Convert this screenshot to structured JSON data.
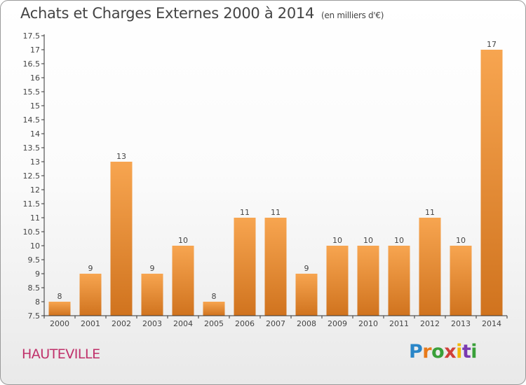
{
  "header": {
    "title": "Achats et Charges Externes 2000 à 2014",
    "unit": "(en milliers d'€)"
  },
  "location": "HAUTEVILLE",
  "logo": {
    "text": "Proxiti"
  },
  "colors": {
    "bar_top": "#f7a550",
    "bar_bottom": "#d0731e",
    "location": "#c0306a"
  },
  "chart_data": {
    "type": "bar",
    "title": "Achats et Charges Externes 2000 à 2014",
    "subtitle": "(en milliers d'€)",
    "xlabel": "",
    "ylabel": "",
    "categories": [
      "2000",
      "2001",
      "2002",
      "2003",
      "2004",
      "2005",
      "2006",
      "2007",
      "2008",
      "2009",
      "2010",
      "2011",
      "2012",
      "2013",
      "2014"
    ],
    "values": [
      8,
      9,
      13,
      9,
      10,
      8,
      11,
      11,
      9,
      10,
      10,
      10,
      11,
      10,
      17
    ],
    "ylim": [
      7.5,
      17.5
    ],
    "yticks": [
      "7.5",
      "8",
      "8.5",
      "9",
      "9.5",
      "10",
      "10.5",
      "11",
      "11.5",
      "12",
      "12.5",
      "13",
      "13.5",
      "14",
      "14.5",
      "15",
      "15.5",
      "16",
      "16.5",
      "17",
      "17.5"
    ],
    "grid": false,
    "legend": "none"
  }
}
